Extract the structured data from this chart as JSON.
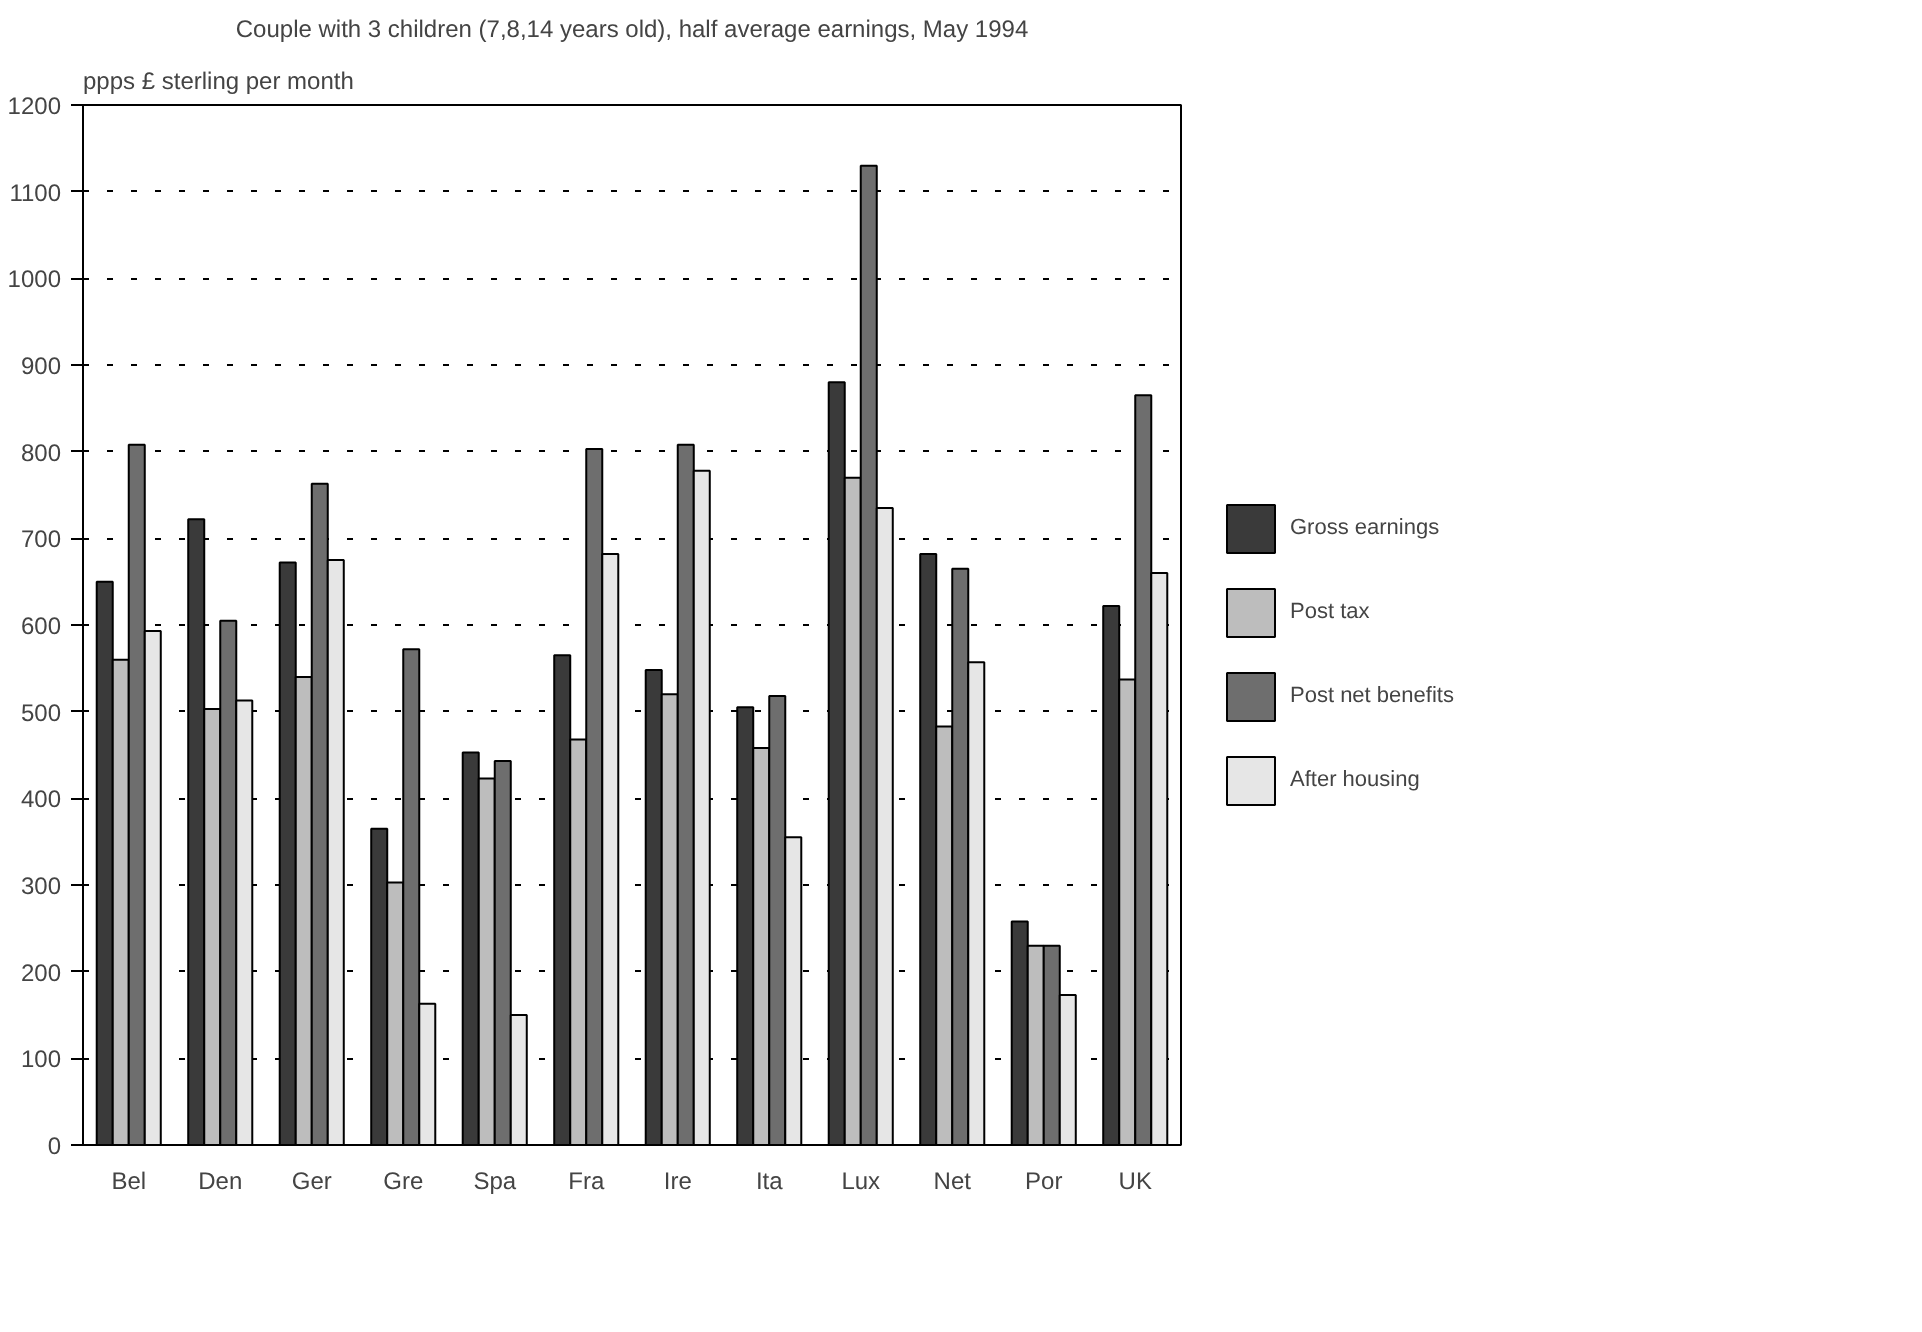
{
  "chart_data": {
    "type": "bar",
    "title": "Couple with 3 children (7,8,14 years old), half average earnings, May 1994",
    "ylabel": "ppps £ sterling per month",
    "categories": [
      "Bel",
      "Den",
      "Ger",
      "Gre",
      "Spa",
      "Fra",
      "Ire",
      "Ita",
      "Lux",
      "Net",
      "Por",
      "UK"
    ],
    "series": [
      {
        "name": "Gross earnings",
        "color": "#3a3a3a",
        "values": [
          650,
          722,
          672,
          365,
          453,
          565,
          548,
          505,
          880,
          682,
          258,
          622
        ]
      },
      {
        "name": "Post tax",
        "color": "#bdbdbd",
        "values": [
          560,
          503,
          540,
          303,
          423,
          468,
          520,
          458,
          770,
          483,
          230,
          537
        ]
      },
      {
        "name": "Post net benefits",
        "color": "#6e6e6e",
        "values": [
          808,
          605,
          763,
          572,
          443,
          803,
          808,
          518,
          1130,
          665,
          230,
          865
        ]
      },
      {
        "name": "After housing",
        "color": "#e6e6e6",
        "values": [
          593,
          513,
          675,
          163,
          150,
          682,
          778,
          355,
          735,
          557,
          173,
          660
        ]
      }
    ],
    "ylim": [
      0,
      1200
    ],
    "yticks": [
      0,
      100,
      200,
      300,
      400,
      500,
      600,
      700,
      800,
      900,
      1000,
      1100,
      1200
    ],
    "grid": "y",
    "legend": "right"
  }
}
